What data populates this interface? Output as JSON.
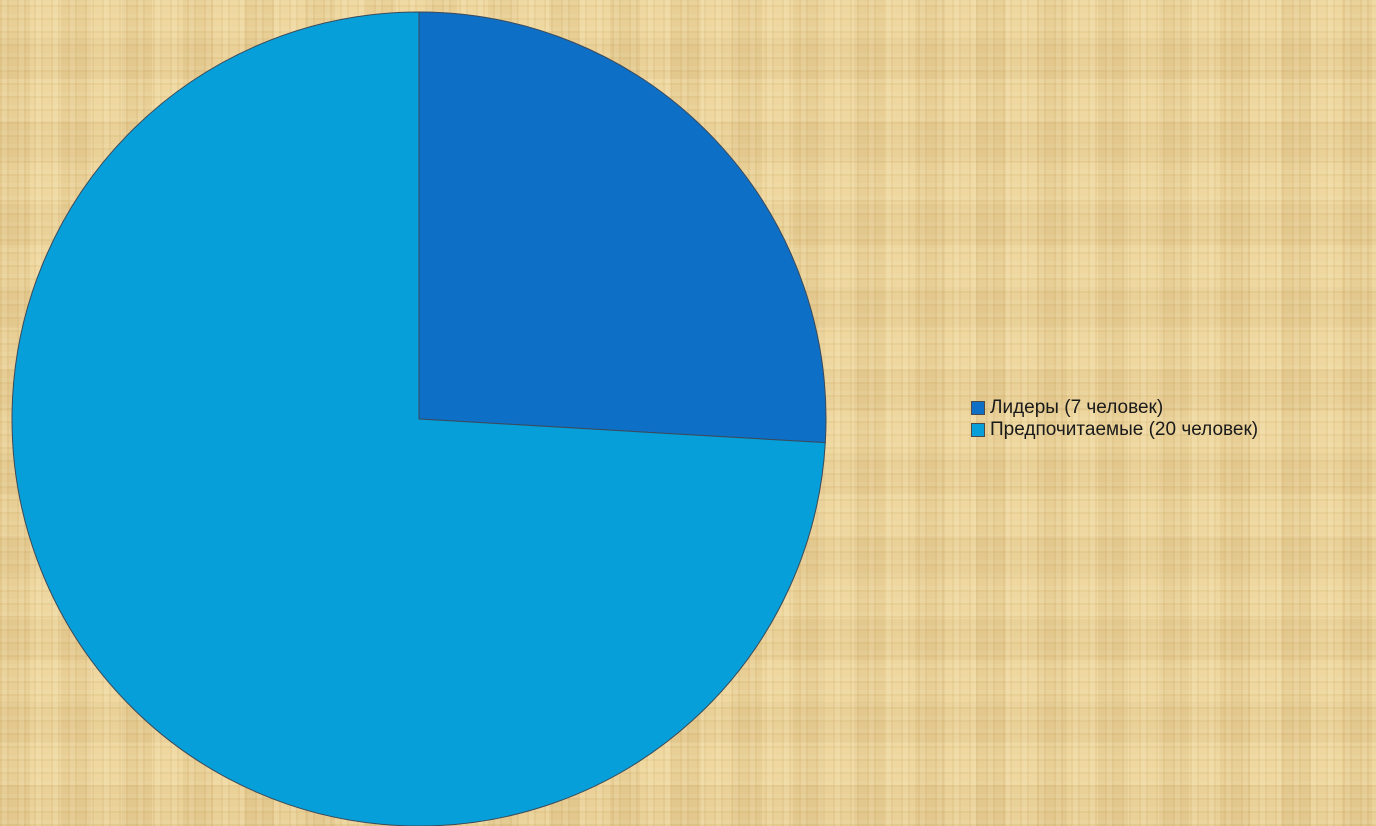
{
  "chart_data": {
    "type": "pie",
    "categories": [
      "Лидеры (7 человек)",
      "Предпочитаемые (20 человек)"
    ],
    "values": [
      7,
      20
    ],
    "colors": [
      "#0e6fc6",
      "#069fd9"
    ],
    "start_angle_deg": 0,
    "direction": "clockwise",
    "legend_position": "right",
    "title": ""
  }
}
